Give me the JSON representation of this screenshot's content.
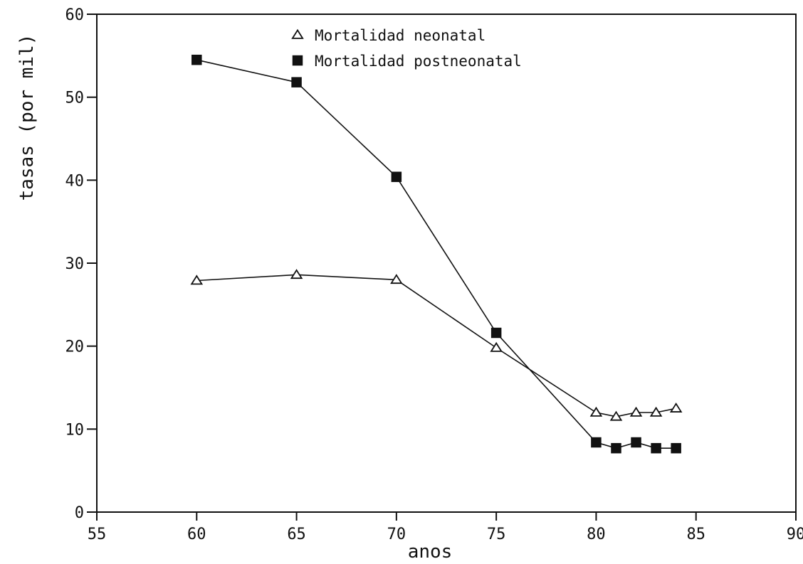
{
  "chart_data": {
    "type": "line",
    "title": "",
    "xlabel": "anos",
    "ylabel": "tasas (por mil)",
    "xlim": [
      55,
      90
    ],
    "ylim": [
      0,
      60
    ],
    "xticks": [
      55,
      60,
      65,
      70,
      75,
      80,
      85,
      90
    ],
    "yticks": [
      0,
      10,
      20,
      30,
      40,
      50,
      60
    ],
    "grid": false,
    "legend_position": "top-center",
    "series": [
      {
        "name": "Mortalidad neonatal",
        "marker": "open-triangle",
        "color": "#111111",
        "x": [
          60,
          65,
          70,
          75,
          80,
          81,
          82,
          83,
          84
        ],
        "y": [
          27.9,
          28.6,
          28.0,
          19.8,
          12.0,
          11.5,
          12.0,
          12.0,
          12.5
        ]
      },
      {
        "name": "Mortalidad postneonatal",
        "marker": "filled-square",
        "color": "#111111",
        "x": [
          60,
          65,
          70,
          75,
          80,
          81,
          82,
          83,
          84
        ],
        "y": [
          54.5,
          51.8,
          40.4,
          21.6,
          8.4,
          7.7,
          8.4,
          7.7,
          7.7
        ]
      }
    ]
  }
}
